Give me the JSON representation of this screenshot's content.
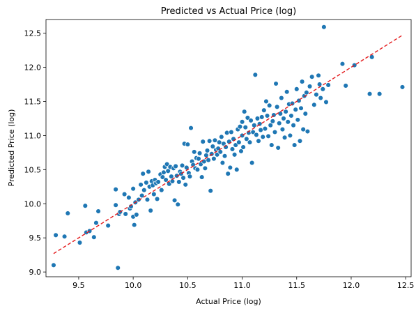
{
  "chart_data": {
    "type": "scatter",
    "title": "Predicted vs Actual Price (log)",
    "xlabel": "Actual Price (log)",
    "ylabel": "Predicted Price (log)",
    "xlim": [
      9.2,
      12.55
    ],
    "ylim": [
      8.93,
      12.7
    ],
    "x_ticks": [
      "9.5",
      "10.0",
      "10.5",
      "11.0",
      "11.5",
      "12.0",
      "12.5"
    ],
    "y_ticks": [
      "9.0",
      "9.5",
      "10.0",
      "10.5",
      "11.0",
      "11.5",
      "12.0",
      "12.5"
    ],
    "grid": false,
    "point_color": "#1f77b4",
    "reference_line": {
      "style": "dashed",
      "color": "#e41a1c",
      "from": [
        9.27,
        9.27
      ],
      "to": [
        12.47,
        12.47
      ]
    },
    "points": [
      [
        9.27,
        9.1
      ],
      [
        9.29,
        9.54
      ],
      [
        9.37,
        9.52
      ],
      [
        9.4,
        9.86
      ],
      [
        9.51,
        9.43
      ],
      [
        9.56,
        9.97
      ],
      [
        9.57,
        9.58
      ],
      [
        9.6,
        9.6
      ],
      [
        9.64,
        9.51
      ],
      [
        9.66,
        9.72
      ],
      [
        9.68,
        9.89
      ],
      [
        9.77,
        9.68
      ],
      [
        9.84,
        9.98
      ],
      [
        9.84,
        10.21
      ],
      [
        9.86,
        9.06
      ],
      [
        9.87,
        9.85
      ],
      [
        9.88,
        9.88
      ],
      [
        9.92,
        10.14
      ],
      [
        9.93,
        9.85
      ],
      [
        9.96,
        10.09
      ],
      [
        9.97,
        9.93
      ],
      [
        9.98,
        9.96
      ],
      [
        10.0,
        10.22
      ],
      [
        10.0,
        9.81
      ],
      [
        10.01,
        9.69
      ],
      [
        10.02,
        10.02
      ],
      [
        10.03,
        9.84
      ],
      [
        10.05,
        10.06
      ],
      [
        10.07,
        10.28
      ],
      [
        10.08,
        10.12
      ],
      [
        10.09,
        10.44
      ],
      [
        10.1,
        10.2
      ],
      [
        10.12,
        10.31
      ],
      [
        10.13,
        10.06
      ],
      [
        10.14,
        10.47
      ],
      [
        10.15,
        10.25
      ],
      [
        10.16,
        9.9
      ],
      [
        10.17,
        10.33
      ],
      [
        10.18,
        10.27
      ],
      [
        10.19,
        10.14
      ],
      [
        10.2,
        10.35
      ],
      [
        10.21,
        10.3
      ],
      [
        10.22,
        10.07
      ],
      [
        10.23,
        10.32
      ],
      [
        10.25,
        10.43
      ],
      [
        10.26,
        10.2
      ],
      [
        10.27,
        10.39
      ],
      [
        10.28,
        10.46
      ],
      [
        10.29,
        10.54
      ],
      [
        10.3,
        10.35
      ],
      [
        10.31,
        10.58
      ],
      [
        10.32,
        10.48
      ],
      [
        10.33,
        10.29
      ],
      [
        10.34,
        10.54
      ],
      [
        10.35,
        10.4
      ],
      [
        10.36,
        10.33
      ],
      [
        10.37,
        10.52
      ],
      [
        10.38,
        10.05
      ],
      [
        10.39,
        10.55
      ],
      [
        10.4,
        10.41
      ],
      [
        10.41,
        9.99
      ],
      [
        10.42,
        10.32
      ],
      [
        10.43,
        10.47
      ],
      [
        10.44,
        10.44
      ],
      [
        10.45,
        10.56
      ],
      [
        10.46,
        10.38
      ],
      [
        10.47,
        10.88
      ],
      [
        10.48,
        10.28
      ],
      [
        10.49,
        10.53
      ],
      [
        10.5,
        10.87
      ],
      [
        10.51,
        10.45
      ],
      [
        10.52,
        10.4
      ],
      [
        10.53,
        11.11
      ],
      [
        10.54,
        10.62
      ],
      [
        10.55,
        10.57
      ],
      [
        10.56,
        10.76
      ],
      [
        10.57,
        10.52
      ],
      [
        10.58,
        10.67
      ],
      [
        10.59,
        10.5
      ],
      [
        10.6,
        10.66
      ],
      [
        10.61,
        10.74
      ],
      [
        10.62,
        10.58
      ],
      [
        10.63,
        10.39
      ],
      [
        10.64,
        10.91
      ],
      [
        10.65,
        10.62
      ],
      [
        10.66,
        10.52
      ],
      [
        10.67,
        10.71
      ],
      [
        10.68,
        10.78
      ],
      [
        10.69,
        10.64
      ],
      [
        10.7,
        10.92
      ],
      [
        10.71,
        10.19
      ],
      [
        10.72,
        10.73
      ],
      [
        10.73,
        10.84
      ],
      [
        10.74,
        10.66
      ],
      [
        10.75,
        10.93
      ],
      [
        10.76,
        10.79
      ],
      [
        10.77,
        10.72
      ],
      [
        10.78,
        10.81
      ],
      [
        10.79,
        10.9
      ],
      [
        10.8,
        10.76
      ],
      [
        10.81,
        10.98
      ],
      [
        10.82,
        10.6
      ],
      [
        10.83,
        10.88
      ],
      [
        10.84,
        10.7
      ],
      [
        10.85,
        10.83
      ],
      [
        10.86,
        11.04
      ],
      [
        10.87,
        10.44
      ],
      [
        10.88,
        10.91
      ],
      [
        10.89,
        10.53
      ],
      [
        10.9,
        11.05
      ],
      [
        10.91,
        10.8
      ],
      [
        10.92,
        10.95
      ],
      [
        10.93,
        10.72
      ],
      [
        10.94,
        10.86
      ],
      [
        10.95,
        10.5
      ],
      [
        10.96,
        11.09
      ],
      [
        10.97,
        10.9
      ],
      [
        10.98,
        11.13
      ],
      [
        10.99,
        10.77
      ],
      [
        11.0,
        11.2
      ],
      [
        11.0,
        11.0
      ],
      [
        11.01,
        10.83
      ],
      [
        11.02,
        11.35
      ],
      [
        11.03,
        11.12
      ],
      [
        11.04,
        10.95
      ],
      [
        11.05,
        11.26
      ],
      [
        11.06,
        11.04
      ],
      [
        11.07,
        10.9
      ],
      [
        11.08,
        11.22
      ],
      [
        11.09,
        10.6
      ],
      [
        11.1,
        11.05
      ],
      [
        11.11,
        11.15
      ],
      [
        11.12,
        11.89
      ],
      [
        11.13,
        11.01
      ],
      [
        11.14,
        11.25
      ],
      [
        11.15,
        10.92
      ],
      [
        11.16,
        11.17
      ],
      [
        11.17,
        11.08
      ],
      [
        11.18,
        11.27
      ],
      [
        11.19,
        10.98
      ],
      [
        11.2,
        11.37
      ],
      [
        11.21,
        11.1
      ],
      [
        11.22,
        11.5
      ],
      [
        11.23,
        11.29
      ],
      [
        11.24,
        10.99
      ],
      [
        11.25,
        11.44
      ],
      [
        11.26,
        11.15
      ],
      [
        11.27,
        10.86
      ],
      [
        11.28,
        11.21
      ],
      [
        11.29,
        11.3
      ],
      [
        11.3,
        11.05
      ],
      [
        11.31,
        11.76
      ],
      [
        11.32,
        11.42
      ],
      [
        11.33,
        10.82
      ],
      [
        11.34,
        11.18
      ],
      [
        11.35,
        11.32
      ],
      [
        11.36,
        11.55
      ],
      [
        11.37,
        11.09
      ],
      [
        11.38,
        11.25
      ],
      [
        11.39,
        10.97
      ],
      [
        11.4,
        11.35
      ],
      [
        11.41,
        11.64
      ],
      [
        11.42,
        11.2
      ],
      [
        11.43,
        11.46
      ],
      [
        11.44,
        11.0
      ],
      [
        11.45,
        11.29
      ],
      [
        11.46,
        11.47
      ],
      [
        11.47,
        11.15
      ],
      [
        11.48,
        10.86
      ],
      [
        11.49,
        11.38
      ],
      [
        11.5,
        11.68
      ],
      [
        11.51,
        11.23
      ],
      [
        11.52,
        11.51
      ],
      [
        11.53,
        10.92
      ],
      [
        11.54,
        11.4
      ],
      [
        11.55,
        11.79
      ],
      [
        11.56,
        11.09
      ],
      [
        11.57,
        11.58
      ],
      [
        11.58,
        11.32
      ],
      [
        11.59,
        11.63
      ],
      [
        11.6,
        11.06
      ],
      [
        11.62,
        11.72
      ],
      [
        11.64,
        11.86
      ],
      [
        11.66,
        11.45
      ],
      [
        11.68,
        11.6
      ],
      [
        11.7,
        11.88
      ],
      [
        11.71,
        11.75
      ],
      [
        11.72,
        11.55
      ],
      [
        11.74,
        11.68
      ],
      [
        11.75,
        12.59
      ],
      [
        11.77,
        11.49
      ],
      [
        11.79,
        11.74
      ],
      [
        11.92,
        12.05
      ],
      [
        11.95,
        11.73
      ],
      [
        12.03,
        12.03
      ],
      [
        12.17,
        11.61
      ],
      [
        12.19,
        12.15
      ],
      [
        12.26,
        11.61
      ],
      [
        12.47,
        11.71
      ]
    ]
  }
}
